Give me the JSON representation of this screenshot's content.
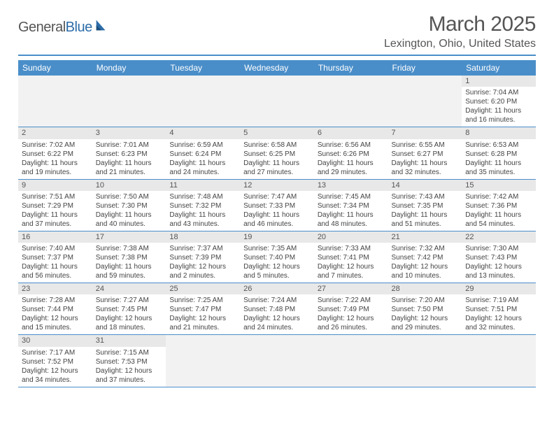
{
  "logo": {
    "word1": "General",
    "word2": "Blue"
  },
  "title": "March 2025",
  "location": "Lexington, Ohio, United States",
  "colors": {
    "header_bg": "#4a8ec9",
    "header_text": "#ffffff",
    "daynum_bg": "#e8e8e8",
    "blank_bg": "#f2f2f2",
    "border": "#4a8ec9",
    "text": "#444444"
  },
  "weekdays": [
    "Sunday",
    "Monday",
    "Tuesday",
    "Wednesday",
    "Thursday",
    "Friday",
    "Saturday"
  ],
  "days": [
    {
      "n": 1,
      "sunrise": "7:04 AM",
      "sunset": "6:20 PM",
      "day_h": 11,
      "day_m": 16
    },
    {
      "n": 2,
      "sunrise": "7:02 AM",
      "sunset": "6:22 PM",
      "day_h": 11,
      "day_m": 19
    },
    {
      "n": 3,
      "sunrise": "7:01 AM",
      "sunset": "6:23 PM",
      "day_h": 11,
      "day_m": 21
    },
    {
      "n": 4,
      "sunrise": "6:59 AM",
      "sunset": "6:24 PM",
      "day_h": 11,
      "day_m": 24
    },
    {
      "n": 5,
      "sunrise": "6:58 AM",
      "sunset": "6:25 PM",
      "day_h": 11,
      "day_m": 27
    },
    {
      "n": 6,
      "sunrise": "6:56 AM",
      "sunset": "6:26 PM",
      "day_h": 11,
      "day_m": 29
    },
    {
      "n": 7,
      "sunrise": "6:55 AM",
      "sunset": "6:27 PM",
      "day_h": 11,
      "day_m": 32
    },
    {
      "n": 8,
      "sunrise": "6:53 AM",
      "sunset": "6:28 PM",
      "day_h": 11,
      "day_m": 35
    },
    {
      "n": 9,
      "sunrise": "7:51 AM",
      "sunset": "7:29 PM",
      "day_h": 11,
      "day_m": 37
    },
    {
      "n": 10,
      "sunrise": "7:50 AM",
      "sunset": "7:30 PM",
      "day_h": 11,
      "day_m": 40
    },
    {
      "n": 11,
      "sunrise": "7:48 AM",
      "sunset": "7:32 PM",
      "day_h": 11,
      "day_m": 43
    },
    {
      "n": 12,
      "sunrise": "7:47 AM",
      "sunset": "7:33 PM",
      "day_h": 11,
      "day_m": 46
    },
    {
      "n": 13,
      "sunrise": "7:45 AM",
      "sunset": "7:34 PM",
      "day_h": 11,
      "day_m": 48
    },
    {
      "n": 14,
      "sunrise": "7:43 AM",
      "sunset": "7:35 PM",
      "day_h": 11,
      "day_m": 51
    },
    {
      "n": 15,
      "sunrise": "7:42 AM",
      "sunset": "7:36 PM",
      "day_h": 11,
      "day_m": 54
    },
    {
      "n": 16,
      "sunrise": "7:40 AM",
      "sunset": "7:37 PM",
      "day_h": 11,
      "day_m": 56
    },
    {
      "n": 17,
      "sunrise": "7:38 AM",
      "sunset": "7:38 PM",
      "day_h": 11,
      "day_m": 59
    },
    {
      "n": 18,
      "sunrise": "7:37 AM",
      "sunset": "7:39 PM",
      "day_h": 12,
      "day_m": 2
    },
    {
      "n": 19,
      "sunrise": "7:35 AM",
      "sunset": "7:40 PM",
      "day_h": 12,
      "day_m": 5
    },
    {
      "n": 20,
      "sunrise": "7:33 AM",
      "sunset": "7:41 PM",
      "day_h": 12,
      "day_m": 7
    },
    {
      "n": 21,
      "sunrise": "7:32 AM",
      "sunset": "7:42 PM",
      "day_h": 12,
      "day_m": 10
    },
    {
      "n": 22,
      "sunrise": "7:30 AM",
      "sunset": "7:43 PM",
      "day_h": 12,
      "day_m": 13
    },
    {
      "n": 23,
      "sunrise": "7:28 AM",
      "sunset": "7:44 PM",
      "day_h": 12,
      "day_m": 15
    },
    {
      "n": 24,
      "sunrise": "7:27 AM",
      "sunset": "7:45 PM",
      "day_h": 12,
      "day_m": 18
    },
    {
      "n": 25,
      "sunrise": "7:25 AM",
      "sunset": "7:47 PM",
      "day_h": 12,
      "day_m": 21
    },
    {
      "n": 26,
      "sunrise": "7:24 AM",
      "sunset": "7:48 PM",
      "day_h": 12,
      "day_m": 24
    },
    {
      "n": 27,
      "sunrise": "7:22 AM",
      "sunset": "7:49 PM",
      "day_h": 12,
      "day_m": 26
    },
    {
      "n": 28,
      "sunrise": "7:20 AM",
      "sunset": "7:50 PM",
      "day_h": 12,
      "day_m": 29
    },
    {
      "n": 29,
      "sunrise": "7:19 AM",
      "sunset": "7:51 PM",
      "day_h": 12,
      "day_m": 32
    },
    {
      "n": 30,
      "sunrise": "7:17 AM",
      "sunset": "7:52 PM",
      "day_h": 12,
      "day_m": 34
    },
    {
      "n": 31,
      "sunrise": "7:15 AM",
      "sunset": "7:53 PM",
      "day_h": 12,
      "day_m": 37
    }
  ],
  "lead_blanks": 6,
  "trail_blanks": 5,
  "labels": {
    "sunrise": "Sunrise:",
    "sunset": "Sunset:",
    "daylight": "Daylight:",
    "hours": "hours",
    "and": "and",
    "minutes": "minutes."
  }
}
